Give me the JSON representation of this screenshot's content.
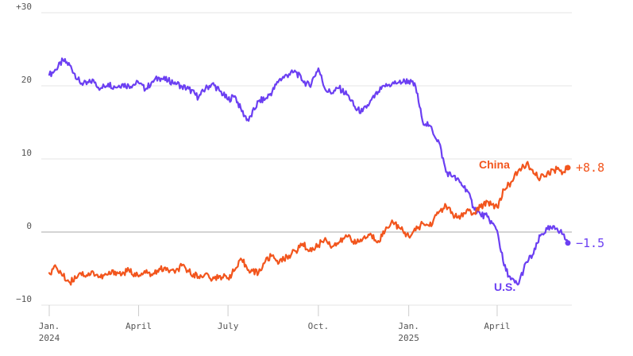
{
  "chart_data": {
    "type": "line",
    "title": "",
    "xlabel": "",
    "ylabel": "",
    "ylim": [
      -10,
      30
    ],
    "xlim": [
      "2024-01-01",
      "2025-06-15"
    ],
    "grid": true,
    "y_ticks": [
      {
        "value": 30,
        "label": "+30"
      },
      {
        "value": 20,
        "label": "20"
      },
      {
        "value": 10,
        "label": "10"
      },
      {
        "value": 0,
        "label": "0"
      },
      {
        "value": -10,
        "label": "−10"
      }
    ],
    "x_ticks": [
      {
        "date": "2024-01-01",
        "label": "Jan.",
        "sublabel": "2024"
      },
      {
        "date": "2024-04-01",
        "label": "April",
        "sublabel": ""
      },
      {
        "date": "2024-07-01",
        "label": "July",
        "sublabel": ""
      },
      {
        "date": "2024-10-01",
        "label": "Oct.",
        "sublabel": ""
      },
      {
        "date": "2025-01-01",
        "label": "Jan.",
        "sublabel": "2025"
      },
      {
        "date": "2025-04-01",
        "label": "April",
        "sublabel": ""
      }
    ],
    "series": [
      {
        "name": "U.S.",
        "color": "#6b3ff2",
        "end_label": "−1.5",
        "points": [
          [
            "2024-01-01",
            21.5
          ],
          [
            "2024-01-08",
            22.2
          ],
          [
            "2024-01-15",
            23.5
          ],
          [
            "2024-01-22",
            22.8
          ],
          [
            "2024-02-01",
            20.5
          ],
          [
            "2024-02-08",
            20.2
          ],
          [
            "2024-02-15",
            20.8
          ],
          [
            "2024-02-22",
            19.6
          ],
          [
            "2024-03-01",
            20.3
          ],
          [
            "2024-03-08",
            19.8
          ],
          [
            "2024-03-15",
            20.2
          ],
          [
            "2024-03-22",
            20.0
          ],
          [
            "2024-04-01",
            20.4
          ],
          [
            "2024-04-08",
            19.5
          ],
          [
            "2024-04-15",
            20.6
          ],
          [
            "2024-04-22",
            21.1
          ],
          [
            "2024-05-01",
            20.7
          ],
          [
            "2024-05-08",
            20.5
          ],
          [
            "2024-05-15",
            19.9
          ],
          [
            "2024-05-22",
            19.6
          ],
          [
            "2024-06-01",
            18.4
          ],
          [
            "2024-06-08",
            19.6
          ],
          [
            "2024-06-15",
            20.3
          ],
          [
            "2024-06-22",
            19.4
          ],
          [
            "2024-07-01",
            18.1
          ],
          [
            "2024-07-08",
            18.6
          ],
          [
            "2024-07-15",
            16.5
          ],
          [
            "2024-07-22",
            15.2
          ],
          [
            "2024-08-01",
            17.9
          ],
          [
            "2024-08-08",
            18.2
          ],
          [
            "2024-08-15",
            19.2
          ],
          [
            "2024-08-22",
            20.8
          ],
          [
            "2024-09-01",
            21.6
          ],
          [
            "2024-09-08",
            21.9
          ],
          [
            "2024-09-15",
            20.7
          ],
          [
            "2024-09-22",
            20.0
          ],
          [
            "2024-10-01",
            22.4
          ],
          [
            "2024-10-08",
            19.5
          ],
          [
            "2024-10-15",
            19.0
          ],
          [
            "2024-10-22",
            19.7
          ],
          [
            "2024-11-01",
            18.6
          ],
          [
            "2024-11-08",
            16.8
          ],
          [
            "2024-11-15",
            16.5
          ],
          [
            "2024-11-22",
            17.6
          ],
          [
            "2024-12-01",
            19.2
          ],
          [
            "2024-12-08",
            19.9
          ],
          [
            "2024-12-15",
            20.3
          ],
          [
            "2024-12-22",
            20.5
          ],
          [
            "2025-01-01",
            20.7
          ],
          [
            "2025-01-08",
            19.9
          ],
          [
            "2025-01-15",
            15.2
          ],
          [
            "2025-01-22",
            14.6
          ],
          [
            "2025-02-01",
            12.2
          ],
          [
            "2025-02-08",
            8.2
          ],
          [
            "2025-02-15",
            7.6
          ],
          [
            "2025-02-22",
            6.8
          ],
          [
            "2025-03-01",
            5.8
          ],
          [
            "2025-03-08",
            3.4
          ],
          [
            "2025-03-15",
            2.4
          ],
          [
            "2025-03-22",
            2.1
          ],
          [
            "2025-04-01",
            0.2
          ],
          [
            "2025-04-08",
            -4.6
          ],
          [
            "2025-04-15",
            -6.5
          ],
          [
            "2025-04-22",
            -7.2
          ],
          [
            "2025-05-01",
            -4.1
          ],
          [
            "2025-05-08",
            -3.0
          ],
          [
            "2025-05-15",
            -0.5
          ],
          [
            "2025-05-22",
            0.4
          ],
          [
            "2025-06-01",
            0.5
          ],
          [
            "2025-06-07",
            -0.3
          ],
          [
            "2025-06-12",
            -1.5
          ]
        ]
      },
      {
        "name": "China",
        "color": "#f2551d",
        "end_label": "+8.8",
        "points": [
          [
            "2024-01-01",
            -5.6
          ],
          [
            "2024-01-08",
            -4.8
          ],
          [
            "2024-01-15",
            -6.0
          ],
          [
            "2024-01-22",
            -6.9
          ],
          [
            "2024-02-01",
            -5.6
          ],
          [
            "2024-02-08",
            -5.9
          ],
          [
            "2024-02-15",
            -5.5
          ],
          [
            "2024-02-22",
            -6.2
          ],
          [
            "2024-03-01",
            -5.8
          ],
          [
            "2024-03-08",
            -5.4
          ],
          [
            "2024-03-15",
            -5.8
          ],
          [
            "2024-03-22",
            -5.2
          ],
          [
            "2024-04-01",
            -6.1
          ],
          [
            "2024-04-08",
            -5.6
          ],
          [
            "2024-04-15",
            -5.9
          ],
          [
            "2024-04-22",
            -5.0
          ],
          [
            "2024-05-01",
            -5.2
          ],
          [
            "2024-05-08",
            -5.6
          ],
          [
            "2024-05-15",
            -4.6
          ],
          [
            "2024-05-22",
            -5.4
          ],
          [
            "2024-06-01",
            -6.1
          ],
          [
            "2024-06-08",
            -5.7
          ],
          [
            "2024-06-15",
            -6.5
          ],
          [
            "2024-06-22",
            -6.0
          ],
          [
            "2024-07-01",
            -6.3
          ],
          [
            "2024-07-08",
            -5.2
          ],
          [
            "2024-07-15",
            -3.8
          ],
          [
            "2024-07-22",
            -5.2
          ],
          [
            "2024-08-01",
            -5.6
          ],
          [
            "2024-08-08",
            -4.0
          ],
          [
            "2024-08-15",
            -3.2
          ],
          [
            "2024-08-22",
            -4.2
          ],
          [
            "2024-09-01",
            -3.2
          ],
          [
            "2024-09-08",
            -2.6
          ],
          [
            "2024-09-15",
            -1.6
          ],
          [
            "2024-09-22",
            -2.6
          ],
          [
            "2024-10-01",
            -1.8
          ],
          [
            "2024-10-08",
            -0.8
          ],
          [
            "2024-10-15",
            -2.0
          ],
          [
            "2024-10-22",
            -1.4
          ],
          [
            "2024-11-01",
            -0.4
          ],
          [
            "2024-11-08",
            -1.6
          ],
          [
            "2024-11-15",
            -1.0
          ],
          [
            "2024-11-22",
            -0.4
          ],
          [
            "2024-12-01",
            -1.2
          ],
          [
            "2024-12-08",
            0.2
          ],
          [
            "2024-12-15",
            1.6
          ],
          [
            "2024-12-22",
            0.6
          ],
          [
            "2025-01-01",
            -0.6
          ],
          [
            "2025-01-08",
            0.2
          ],
          [
            "2025-01-15",
            1.2
          ],
          [
            "2025-01-22",
            0.8
          ],
          [
            "2025-02-01",
            2.8
          ],
          [
            "2025-02-08",
            3.6
          ],
          [
            "2025-02-15",
            2.4
          ],
          [
            "2025-02-22",
            1.8
          ],
          [
            "2025-03-01",
            3.0
          ],
          [
            "2025-03-08",
            2.6
          ],
          [
            "2025-03-15",
            3.4
          ],
          [
            "2025-03-22",
            4.2
          ],
          [
            "2025-04-01",
            3.4
          ],
          [
            "2025-04-08",
            5.8
          ],
          [
            "2025-04-15",
            6.8
          ],
          [
            "2025-04-22",
            8.2
          ],
          [
            "2025-05-01",
            9.4
          ],
          [
            "2025-05-08",
            8.0
          ],
          [
            "2025-05-15",
            7.4
          ],
          [
            "2025-05-22",
            8.1
          ],
          [
            "2025-06-01",
            8.6
          ],
          [
            "2025-06-07",
            8.2
          ],
          [
            "2025-06-12",
            8.8
          ]
        ]
      }
    ]
  }
}
